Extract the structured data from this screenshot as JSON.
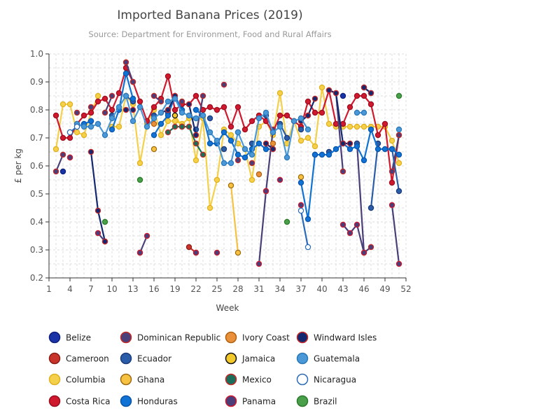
{
  "chart_data": {
    "type": "line",
    "title": "Imported Banana Prices (2019)",
    "subtitle": "Source: Department for Environment, Food and Rural Affairs",
    "xlabel": "Week",
    "ylabel": "£ per kg",
    "xlim": [
      1,
      52
    ],
    "ylim": [
      0.2,
      1.0
    ],
    "x_ticks": [
      "1",
      "4",
      "7",
      "10",
      "13",
      "16",
      "19",
      "22",
      "25",
      "28",
      "31",
      "34",
      "37",
      "40",
      "43",
      "46",
      "49",
      "52"
    ],
    "y_ticks": [
      "0.2",
      "0.3",
      "0.4",
      "0.5",
      "0.6",
      "0.7",
      "0.8",
      "0.9",
      "1.0"
    ],
    "grid": true,
    "legend_position": "bottom",
    "series": [
      {
        "name": "Belize",
        "color": "#1a33a6",
        "outline": "#0d1f7a",
        "points": [
          [
            3,
            0.58
          ],
          [
            43,
            0.85
          ],
          [
            46,
            0.88
          ],
          [
            47,
            0.86
          ]
        ]
      },
      {
        "name": "Cameroon",
        "color": "#c8332b",
        "outline": "#8a1f18",
        "points": [
          [
            4,
            0.63
          ],
          [
            14,
            0.29
          ],
          [
            21,
            0.31
          ],
          [
            22,
            0.29
          ]
        ]
      },
      {
        "name": "Columbia",
        "color": "#f5d04a",
        "outline": "#e0b020",
        "points": [
          [
            2,
            0.66
          ],
          [
            3,
            0.82
          ],
          [
            4,
            0.82
          ],
          [
            5,
            0.72
          ],
          [
            6,
            0.71
          ],
          [
            7,
            0.79
          ],
          [
            8,
            0.85
          ],
          [
            10,
            0.74
          ],
          [
            11,
            0.74
          ],
          [
            12,
            0.85
          ],
          [
            13,
            0.82
          ],
          [
            14,
            0.61
          ],
          [
            15,
            0.75
          ],
          [
            16,
            0.8
          ],
          [
            17,
            0.71
          ],
          [
            18,
            0.76
          ],
          [
            19,
            0.76
          ],
          [
            20,
            0.75
          ],
          [
            21,
            0.77
          ],
          [
            22,
            0.62
          ],
          [
            23,
            0.77
          ],
          [
            24,
            0.45
          ],
          [
            25,
            0.55
          ],
          [
            26,
            0.73
          ],
          [
            27,
            0.71
          ],
          [
            28,
            0.68
          ],
          [
            29,
            0.66
          ],
          [
            30,
            0.55
          ],
          [
            31,
            0.74
          ],
          [
            32,
            0.76
          ],
          [
            33,
            0.71
          ],
          [
            34,
            0.86
          ],
          [
            35,
            0.68
          ],
          [
            36,
            0.76
          ],
          [
            37,
            0.69
          ],
          [
            38,
            0.7
          ],
          [
            39,
            0.67
          ],
          [
            40,
            0.88
          ],
          [
            41,
            0.75
          ],
          [
            42,
            0.74
          ],
          [
            43,
            0.74
          ],
          [
            44,
            0.74
          ],
          [
            45,
            0.74
          ],
          [
            46,
            0.74
          ],
          [
            47,
            0.74
          ],
          [
            48,
            0.74
          ],
          [
            49,
            0.74
          ],
          [
            50,
            0.69
          ],
          [
            51,
            0.61
          ]
        ]
      },
      {
        "name": "Costa Rica",
        "color": "#d0182e",
        "outline": "#9a0f20",
        "points": [
          [
            2,
            0.78
          ],
          [
            3,
            0.7
          ],
          [
            4,
            0.7
          ],
          [
            5,
            0.75
          ],
          [
            6,
            0.78
          ],
          [
            7,
            0.79
          ],
          [
            8,
            0.83
          ],
          [
            9,
            0.84
          ],
          [
            10,
            0.8
          ],
          [
            11,
            0.86
          ],
          [
            12,
            0.95
          ],
          [
            13,
            0.9
          ],
          [
            14,
            0.83
          ],
          [
            15,
            0.76
          ],
          [
            16,
            0.81
          ],
          [
            17,
            0.84
          ],
          [
            18,
            0.92
          ],
          [
            19,
            0.8
          ],
          [
            20,
            0.82
          ],
          [
            21,
            0.82
          ],
          [
            22,
            0.85
          ],
          [
            23,
            0.8
          ],
          [
            24,
            0.81
          ],
          [
            25,
            0.8
          ],
          [
            26,
            0.81
          ],
          [
            27,
            0.74
          ],
          [
            28,
            0.81
          ],
          [
            29,
            0.73
          ],
          [
            30,
            0.76
          ],
          [
            31,
            0.78
          ],
          [
            32,
            0.76
          ],
          [
            33,
            0.72
          ],
          [
            34,
            0.78
          ],
          [
            35,
            0.78
          ],
          [
            36,
            0.76
          ],
          [
            37,
            0.74
          ],
          [
            38,
            0.83
          ],
          [
            39,
            0.79
          ],
          [
            40,
            0.79
          ],
          [
            41,
            0.87
          ],
          [
            42,
            0.75
          ],
          [
            43,
            0.75
          ],
          [
            44,
            0.81
          ],
          [
            45,
            0.85
          ],
          [
            46,
            0.85
          ],
          [
            47,
            0.82
          ],
          [
            48,
            0.71
          ],
          [
            49,
            0.75
          ],
          [
            50,
            0.54
          ],
          [
            51,
            0.71
          ]
        ]
      },
      {
        "name": "Dominican Republic",
        "color": "#4a3f78",
        "outline": "#c62828",
        "points": [
          [
            2,
            0.58
          ],
          [
            3,
            0.64
          ],
          [
            5,
            0.79
          ],
          [
            7,
            0.81
          ],
          [
            9,
            0.79
          ],
          [
            10,
            0.85
          ],
          [
            12,
            0.97
          ],
          [
            13,
            0.9
          ],
          [
            16,
            0.85
          ],
          [
            17,
            0.83
          ],
          [
            20,
            0.83
          ],
          [
            22,
            0.71
          ],
          [
            23,
            0.85
          ],
          [
            26,
            0.89
          ],
          [
            28,
            0.62
          ],
          [
            30,
            0.61
          ],
          [
            32,
            0.51
          ],
          [
            33,
            0.73
          ],
          [
            38,
            0.78
          ],
          [
            41,
            0.87
          ],
          [
            42,
            0.86
          ],
          [
            43,
            0.58
          ],
          [
            45,
            0.68
          ],
          [
            46,
            0.29
          ],
          [
            47,
            0.31
          ],
          [
            50,
            0.58
          ],
          [
            51,
            0.71
          ]
        ]
      },
      {
        "name": "Ecuador",
        "color": "#2a5ca8",
        "outline": "#1a3c7a",
        "points": [
          [
            4,
            0.72
          ],
          [
            7,
            0.76
          ],
          [
            10,
            0.78
          ],
          [
            12,
            0.85
          ],
          [
            13,
            0.83
          ],
          [
            16,
            0.78
          ],
          [
            18,
            0.79
          ],
          [
            20,
            0.74
          ],
          [
            22,
            0.73
          ],
          [
            24,
            0.77
          ],
          [
            26,
            0.66
          ],
          [
            28,
            0.72
          ],
          [
            30,
            0.68
          ],
          [
            32,
            0.78
          ],
          [
            34,
            0.75
          ],
          [
            35,
            0.7
          ],
          [
            37,
            0.73
          ],
          [
            39,
            0.64
          ],
          [
            41,
            0.65
          ],
          [
            43,
            0.68
          ],
          [
            45,
            0.68
          ],
          [
            47,
            0.45
          ],
          [
            48,
            0.68
          ],
          [
            50,
            0.66
          ],
          [
            51,
            0.51
          ]
        ]
      },
      {
        "name": "Ghana",
        "color": "#f5c242",
        "outline": "#a06a10",
        "points": [
          [
            16,
            0.66
          ],
          [
            27,
            0.53
          ],
          [
            28,
            0.29
          ],
          [
            37,
            0.56
          ]
        ]
      },
      {
        "name": "Honduras",
        "color": "#0f72d4",
        "outline": "#0a55a8",
        "points": [
          [
            5,
            0.74
          ],
          [
            6,
            0.75
          ],
          [
            7,
            0.76
          ],
          [
            10,
            0.73
          ],
          [
            11,
            0.8
          ],
          [
            12,
            0.93
          ],
          [
            13,
            0.84
          ],
          [
            16,
            0.71
          ],
          [
            17,
            0.75
          ],
          [
            18,
            0.78
          ],
          [
            19,
            0.85
          ],
          [
            20,
            0.8
          ],
          [
            22,
            0.8
          ],
          [
            23,
            0.78
          ],
          [
            24,
            0.68
          ],
          [
            25,
            0.68
          ],
          [
            26,
            0.72
          ],
          [
            27,
            0.69
          ],
          [
            28,
            0.64
          ],
          [
            29,
            0.63
          ],
          [
            30,
            0.66
          ],
          [
            31,
            0.68
          ],
          [
            32,
            0.66
          ],
          [
            33,
            0.66
          ],
          [
            37,
            0.54
          ],
          [
            38,
            0.41
          ],
          [
            39,
            0.64
          ],
          [
            40,
            0.64
          ],
          [
            41,
            0.64
          ],
          [
            42,
            0.66
          ],
          [
            43,
            0.68
          ],
          [
            44,
            0.66
          ],
          [
            45,
            0.67
          ],
          [
            46,
            0.62
          ],
          [
            47,
            0.73
          ],
          [
            48,
            0.66
          ],
          [
            49,
            0.66
          ],
          [
            50,
            0.66
          ],
          [
            51,
            0.64
          ]
        ]
      },
      {
        "name": "Ivory Coast",
        "color": "#e8913a",
        "outline": "#b06010",
        "points": [
          [
            16,
            0.75
          ],
          [
            31,
            0.57
          ],
          [
            33,
            0.68
          ]
        ]
      },
      {
        "name": "Jamaica",
        "color": "#f2c82a",
        "outline": "#111111",
        "points": [
          [
            19,
            0.78
          ],
          [
            20,
            0.74
          ]
        ]
      },
      {
        "name": "Mexico",
        "color": "#1a6e5a",
        "outline": "#c62828",
        "points": [
          [
            18,
            0.72
          ],
          [
            19,
            0.74
          ],
          [
            20,
            0.74
          ],
          [
            21,
            0.74
          ],
          [
            22,
            0.68
          ],
          [
            23,
            0.64
          ]
        ]
      },
      {
        "name": "Panama",
        "color": "#4a3f78",
        "outline": "#d0182e",
        "points": [
          [
            4,
            0.63
          ],
          [
            8,
            0.36
          ],
          [
            9,
            0.33
          ],
          [
            14,
            0.29
          ],
          [
            15,
            0.35
          ],
          [
            22,
            0.29
          ],
          [
            25,
            0.29
          ],
          [
            31,
            0.25
          ],
          [
            32,
            0.51
          ],
          [
            34,
            0.55
          ],
          [
            37,
            0.46
          ],
          [
            43,
            0.39
          ],
          [
            44,
            0.36
          ],
          [
            45,
            0.39
          ],
          [
            46,
            0.29
          ],
          [
            50,
            0.46
          ],
          [
            51,
            0.25
          ]
        ]
      },
      {
        "name": "Windward Isles",
        "color": "#142870",
        "outline": "#c62828",
        "points": [
          [
            7,
            0.65
          ],
          [
            8,
            0.44
          ],
          [
            9,
            0.33
          ],
          [
            12,
            0.8
          ],
          [
            13,
            0.8
          ],
          [
            17,
            0.79
          ],
          [
            18,
            0.8
          ],
          [
            19,
            0.85
          ],
          [
            21,
            0.82
          ],
          [
            22,
            0.71
          ],
          [
            32,
            0.68
          ],
          [
            33,
            0.66
          ],
          [
            37,
            0.76
          ],
          [
            38,
            0.78
          ],
          [
            39,
            0.84
          ],
          [
            41,
            0.87
          ],
          [
            42,
            0.86
          ],
          [
            43,
            0.68
          ],
          [
            44,
            0.68
          ],
          [
            46,
            0.88
          ],
          [
            47,
            0.86
          ]
        ]
      },
      {
        "name": "Guatemala",
        "color": "#4a98d8",
        "outline": "#2a78b8",
        "points": [
          [
            5,
            0.75
          ],
          [
            6,
            0.74
          ],
          [
            7,
            0.74
          ],
          [
            8,
            0.75
          ],
          [
            9,
            0.71
          ],
          [
            10,
            0.77
          ],
          [
            11,
            0.81
          ],
          [
            12,
            0.85
          ],
          [
            13,
            0.76
          ],
          [
            14,
            0.81
          ],
          [
            15,
            0.74
          ],
          [
            16,
            0.77
          ],
          [
            17,
            0.79
          ],
          [
            18,
            0.83
          ],
          [
            19,
            0.84
          ],
          [
            20,
            0.79
          ],
          [
            21,
            0.78
          ],
          [
            22,
            0.77
          ],
          [
            23,
            0.78
          ],
          [
            24,
            0.72
          ],
          [
            25,
            0.69
          ],
          [
            26,
            0.61
          ],
          [
            27,
            0.61
          ],
          [
            28,
            0.72
          ],
          [
            29,
            0.66
          ],
          [
            30,
            0.64
          ],
          [
            31,
            0.77
          ],
          [
            32,
            0.79
          ],
          [
            33,
            0.72
          ],
          [
            34,
            0.74
          ],
          [
            35,
            0.63
          ],
          [
            36,
            0.76
          ],
          [
            37,
            0.77
          ],
          [
            38,
            0.73
          ],
          [
            45,
            0.79
          ],
          [
            46,
            0.79
          ],
          [
            51,
            0.73
          ]
        ]
      },
      {
        "name": "Nicaragua",
        "color": "#ffffff",
        "outline": "#2a6ab8",
        "points": [
          [
            4,
            0.72
          ],
          [
            5,
            0.74
          ],
          [
            37,
            0.44
          ],
          [
            38,
            0.31
          ]
        ]
      },
      {
        "name": "Brazil",
        "color": "#4aa04a",
        "outline": "#2a7a2a",
        "points": [
          [
            9,
            0.4
          ],
          [
            14,
            0.55
          ],
          [
            35,
            0.4
          ],
          [
            51,
            0.85
          ]
        ]
      }
    ]
  }
}
